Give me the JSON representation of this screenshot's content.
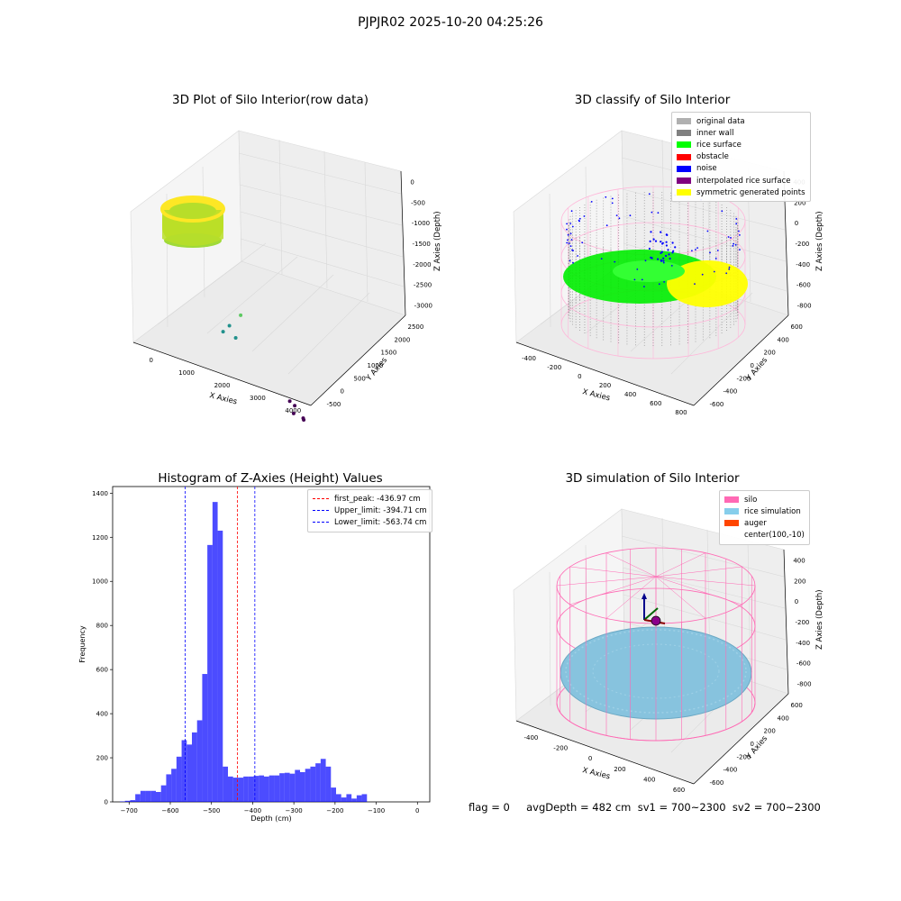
{
  "figure": {
    "suptitle": "PJPJR02 2025-10-20 04:25:26",
    "status_line": "flag = 0     avgDepth = 482 cm  sv1 = 700~2300  sv2 = 700~2300"
  },
  "chart_data": [
    {
      "type": "scatter",
      "id": "raw",
      "title": "3D Plot of Silo Interior(row data)",
      "xlabel": "X Axies",
      "ylabel": "Y Axies",
      "zlabel": "Z Axies (Depth)",
      "xticks": [
        "0",
        "1000",
        "2000",
        "3000",
        "4000"
      ],
      "yticks": [
        "-500",
        "0",
        "500",
        "1000",
        "1500",
        "2000",
        "2500"
      ],
      "zticks": [
        "0",
        "-500",
        "-1000",
        "-1500",
        "-2000",
        "-2500",
        "-3000"
      ],
      "colormap": [
        "#440154",
        "#3b528b",
        "#21918c",
        "#5ec962",
        "#fde725"
      ],
      "outlier_points": [
        {
          "x": 1500,
          "y": 200,
          "z": -1400
        },
        {
          "x": 1600,
          "y": 300,
          "z": -1700
        },
        {
          "x": 1700,
          "y": 350,
          "z": -1200
        },
        {
          "x": 1400,
          "y": 100,
          "z": -1500
        },
        {
          "x": 3200,
          "y": 200,
          "z": -2600
        },
        {
          "x": 3300,
          "y": 250,
          "z": -2700
        },
        {
          "x": 3350,
          "y": 150,
          "z": -2800
        },
        {
          "x": 3500,
          "y": 300,
          "z": -2950
        },
        {
          "x": 3500,
          "y": 320,
          "z": -3000
        }
      ]
    },
    {
      "type": "scatter",
      "id": "classify",
      "title": "3D classify of Silo Interior",
      "xlabel": "X Axies",
      "ylabel": "Y Axies",
      "zlabel": "Z Axies (Depth)",
      "xticks": [
        "-400",
        "-200",
        "0",
        "200",
        "400",
        "600",
        "800"
      ],
      "yticks": [
        "-600",
        "-400",
        "-200",
        "0",
        "200",
        "400",
        "600"
      ],
      "zticks": [
        "400",
        "200",
        "0",
        "-200",
        "-400",
        "-600",
        "-800"
      ],
      "legend": [
        {
          "label": "original data",
          "color": "#b0b0b0"
        },
        {
          "label": "inner wall",
          "color": "#808080"
        },
        {
          "label": "rice surface",
          "color": "#00ff00"
        },
        {
          "label": "obstacle",
          "color": "#ff0000"
        },
        {
          "label": "noise",
          "color": "#0000ff"
        },
        {
          "label": "interpolated rice surface",
          "color": "#800080"
        },
        {
          "label": "symmetric generated points",
          "color": "#ffff00"
        }
      ],
      "silo_wire_color": "#ffb6d9"
    },
    {
      "type": "bar",
      "id": "histogram",
      "title": "Histogram of Z-Axies (Height) Values",
      "xlabel": "Depth (cm)",
      "ylabel": "Frequency",
      "xlim": [
        -740,
        30
      ],
      "ylim": [
        0,
        1430
      ],
      "xticks": [
        -700,
        -600,
        -500,
        -400,
        -300,
        -200,
        -100,
        0
      ],
      "yticks": [
        0,
        200,
        400,
        600,
        800,
        1000,
        1200,
        1400
      ],
      "bar_color": "#0000ff",
      "bar_opacity": 0.7,
      "bin_start": -735,
      "bin_width": 12.5,
      "values": [
        0,
        2,
        5,
        8,
        35,
        50,
        50,
        50,
        45,
        75,
        125,
        150,
        205,
        280,
        260,
        315,
        370,
        580,
        1165,
        1360,
        1230,
        160,
        115,
        110,
        110,
        115,
        115,
        118,
        120,
        115,
        120,
        120,
        130,
        132,
        128,
        145,
        135,
        150,
        160,
        175,
        195,
        160,
        65,
        35,
        20,
        35,
        15,
        30,
        35
      ],
      "lines": [
        {
          "label": "first_peak: -436.97 cm",
          "x": -436.97,
          "color": "#ff0000"
        },
        {
          "label": "Upper_limit: -394.71 cm",
          "x": -394.71,
          "color": "#0000ff"
        },
        {
          "label": "Lower_limit: -563.74 cm",
          "x": -563.74,
          "color": "#0000ff"
        }
      ]
    },
    {
      "type": "scatter",
      "id": "simulation",
      "title": "3D simulation of Silo Interior",
      "xlabel": "X Axies",
      "ylabel": "Y Axies",
      "zlabel": "Z Axies (Depth)",
      "xticks": [
        "-400",
        "-200",
        "0",
        "200",
        "400",
        "600"
      ],
      "yticks": [
        "-600",
        "-400",
        "-200",
        "0",
        "200",
        "400",
        "600"
      ],
      "zticks": [
        "400",
        "200",
        "0",
        "-200",
        "-400",
        "-600",
        "-800"
      ],
      "legend": [
        {
          "label": "silo",
          "color": "#ff69b4"
        },
        {
          "label": "rice simulation",
          "color": "#87ceeb"
        },
        {
          "label": "auger",
          "color": "#ff4500"
        },
        {
          "label": "center(100,-10)",
          "color": ""
        }
      ]
    }
  ]
}
